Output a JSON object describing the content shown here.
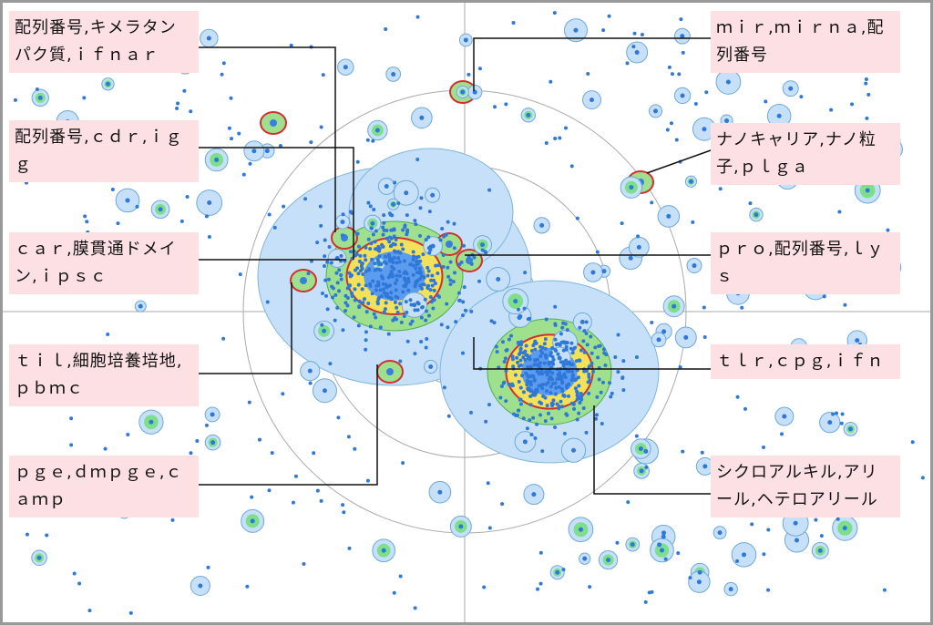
{
  "labels": [
    "配列番号,キメラタンパク質,ｉｆｎａｒ",
    "配列番号,ｃｄｒ,ｉｇｇ",
    "ｃａｒ,膜貫通ドメイン,ｉｐｓｃ",
    "ｔｉｌ,細胞培養培地,ｐｂｍｃ",
    "ｐｇｅ,ｄｍｐｇｅ,ｃａｍｐ",
    "ｍｉｒ,ｍｉｒｎａ,配列番号",
    "ナノキャリア,ナノ粒子,ｐｌｇａ",
    "ｐｒｏ,配列番号,ｌｙｓ",
    "ｔｌｒ,ｃｐｇ,ｉｆｎ",
    "シクロアルキル,アリール,ヘテロアリール"
  ]
}
